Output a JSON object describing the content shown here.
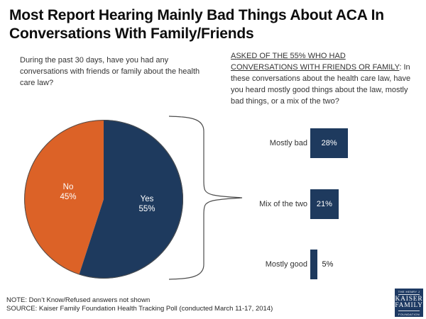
{
  "header": {
    "title_line1": "Most Report Hearing Mainly Bad Things About ACA In",
    "title_line2": "Conversations With Family/Friends"
  },
  "questions": {
    "left": "During the past 30 days, have you had any conversations with friends or family about the health care law?",
    "right_underlined": "ASKED OF THE 55% WHO HAD CONVERSATIONS WITH FRIENDS OR FAMILY",
    "right_rest": ": In these conversations about the health care law, have you heard mostly good things about the law, mostly bad things, or a mix of the two?"
  },
  "chart_data": [
    {
      "type": "pie",
      "slices": [
        {
          "label": "Yes",
          "value": 55,
          "display": "55%",
          "color": "#1E3A5E"
        },
        {
          "label": "No",
          "value": 45,
          "display": "45%",
          "color": "#DC6227"
        }
      ],
      "start_angle_deg": 0,
      "direction": "clockwise",
      "legend_position": "inside"
    },
    {
      "type": "bar",
      "orientation": "horizontal",
      "categories": [
        "Mostly bad",
        "Mix of the two",
        "Mostly good"
      ],
      "values": [
        28,
        21,
        5
      ],
      "value_labels": [
        "28%",
        "21%",
        "5%"
      ],
      "bar_color": "#1E3A5E",
      "xlim": [
        0,
        100
      ],
      "grid": false
    }
  ],
  "footnotes": {
    "note": "NOTE: Don’t Know/Refused answers not shown",
    "source": "SOURCE: Kaiser Family Foundation Health Tracking Poll (conducted March 11-17, 2014)"
  },
  "logo": {
    "line1": "THE HENRY J",
    "line2": "KAISER",
    "line3": "FAMILY",
    "line4": "FOUNDATION"
  },
  "colors": {
    "navy": "#1E3A5E",
    "orange": "#DC6227",
    "logo_navy": "#1E3A63",
    "stroke_gray": "#4d4d4d"
  }
}
